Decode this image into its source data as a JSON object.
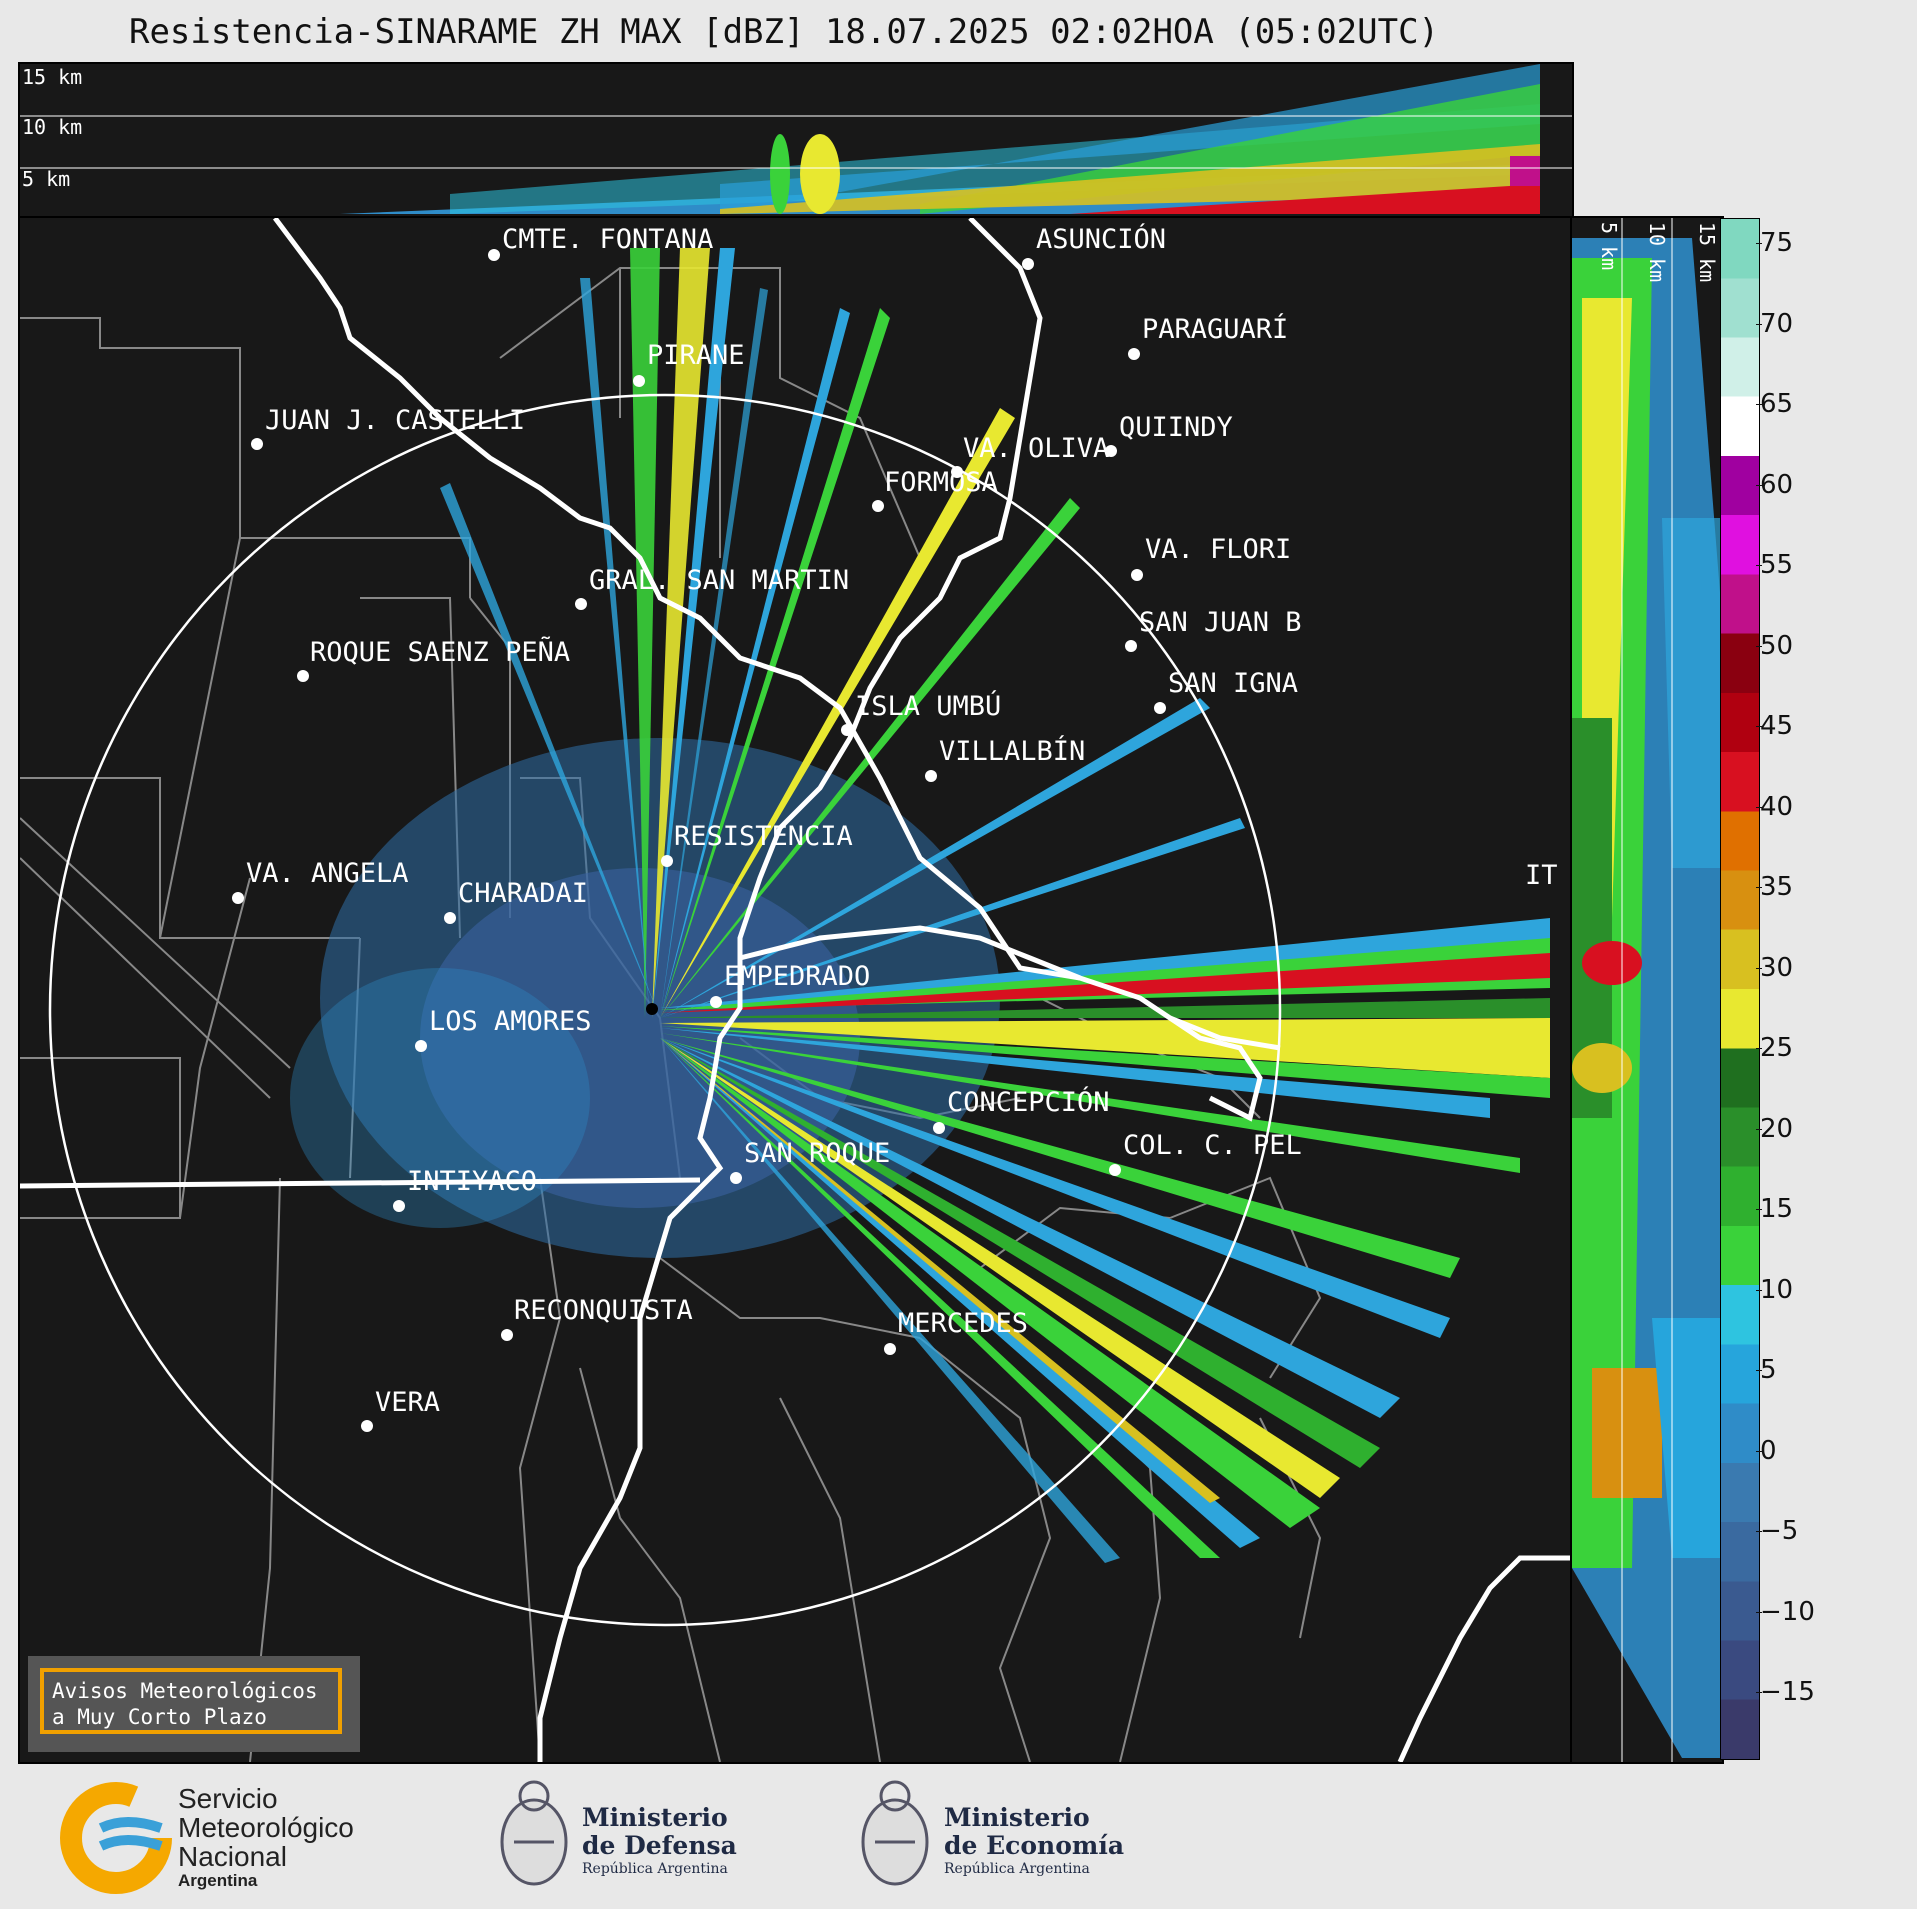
{
  "title": "Resistencia-SINARAME ZH MAX [dBZ] 18.07.2025 02:02HOA (05:02UTC)",
  "top_panel": {
    "height_labels": [
      "15 km",
      "10 km",
      "5 km"
    ]
  },
  "side_panel": {
    "height_labels": [
      "5 km",
      "10 km",
      "15 km"
    ]
  },
  "colorbar": {
    "ticks": [
      "75",
      "70",
      "65",
      "60",
      "55",
      "50",
      "45",
      "40",
      "35",
      "30",
      "25",
      "20",
      "15",
      "10",
      "5",
      "0",
      "−5",
      "−10",
      "−15"
    ],
    "colors": [
      "#3a3a6a",
      "#3a4a80",
      "#3a5a90",
      "#3a6aa0",
      "#3a7ab0",
      "#2f8cc8",
      "#26a5dc",
      "#2ec4e0",
      "#3ad23a",
      "#2fb02f",
      "#2a8f2a",
      "#1f6f1f",
      "#e8e830",
      "#d8c020",
      "#d89010",
      "#e07000",
      "#d81020",
      "#b00010",
      "#8a0010",
      "#c0108a",
      "#e010e0",
      "#a000a0",
      "#ffffff",
      "#d0f0e8",
      "#a0e0d0",
      "#80d8c0"
    ]
  },
  "cities": [
    {
      "name": "CMTE. FONTANA"
    },
    {
      "name": "ASUNCIÓN"
    },
    {
      "name": "PARAGUARÍ"
    },
    {
      "name": "PIRANE"
    },
    {
      "name": "JUAN J. CASTELLI"
    },
    {
      "name": "VA. OLIVA"
    },
    {
      "name": "QUIINDY"
    },
    {
      "name": "FORMOSA"
    },
    {
      "name": "VA. FLORI"
    },
    {
      "name": "GRAL. SAN MARTIN"
    },
    {
      "name": "SAN JUAN B"
    },
    {
      "name": "ROQUE SAENZ PEÑA"
    },
    {
      "name": "SAN IGNA"
    },
    {
      "name": "ISLA UMBÚ"
    },
    {
      "name": "VILLALBÍN"
    },
    {
      "name": "RESISTENCIA"
    },
    {
      "name": "VA. ANGELA"
    },
    {
      "name": "CHARADAI"
    },
    {
      "name": "IT"
    },
    {
      "name": "EMPEDRADO"
    },
    {
      "name": "LOS AMORES"
    },
    {
      "name": "CONCEPCIÓN"
    },
    {
      "name": "SAN ROQUE"
    },
    {
      "name": "COL. C. PEL"
    },
    {
      "name": "INTIYACO"
    },
    {
      "name": "RECONQUISTA"
    },
    {
      "name": "MERCEDES"
    },
    {
      "name": "VERA"
    }
  ],
  "warning": {
    "line1": "Avisos Meteorológicos",
    "line2": "a Muy Corto Plazo"
  },
  "logos": {
    "smn": [
      "Servicio",
      "Meteorológico",
      "Nacional",
      "Argentina"
    ],
    "defensa": [
      "Ministerio",
      "de Defensa",
      "República Argentina"
    ],
    "economia": [
      "Ministerio",
      "de Economía",
      "República Argentina"
    ]
  }
}
